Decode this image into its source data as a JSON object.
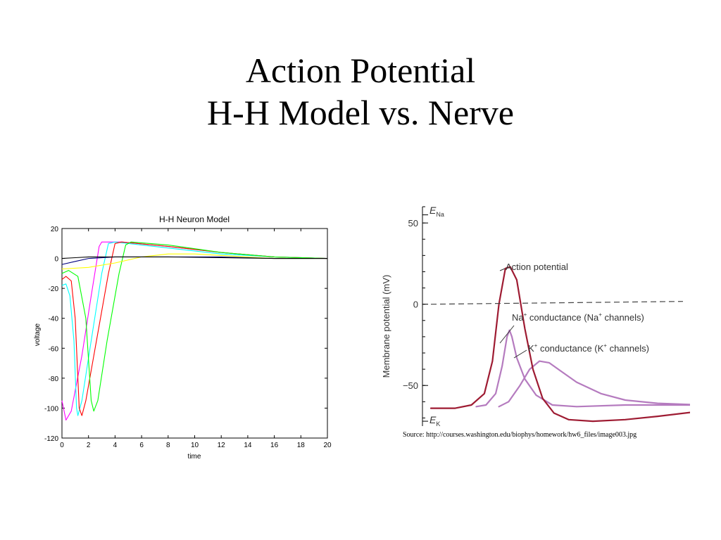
{
  "slide": {
    "title_line1": "Action Potential",
    "title_line2": "H-H Model vs. Nerve",
    "source": "Source: http://courses.washington.edu/biophys/homework/hw6_files/image003.jpg"
  },
  "chart_data": [
    {
      "type": "line",
      "title": "H-H Neuron Model",
      "xlabel": "time",
      "ylabel": "voltage",
      "xlim": [
        0,
        20
      ],
      "ylim": [
        -120,
        20
      ],
      "xticks": [
        "0",
        "2",
        "4",
        "6",
        "8",
        "10",
        "12",
        "14",
        "16",
        "18",
        "20"
      ],
      "yticks": [
        "20",
        "0",
        "-20",
        "-40",
        "-60",
        "-80",
        "-100",
        "-120"
      ],
      "grid": false,
      "series": [
        {
          "color": "#ff00ff",
          "points": [
            [
              0,
              -95
            ],
            [
              0.3,
              -108
            ],
            [
              0.7,
              -102
            ],
            [
              1.5,
              -65
            ],
            [
              2.2,
              -25
            ],
            [
              2.8,
              8
            ],
            [
              3.0,
              11
            ],
            [
              4.5,
              11
            ],
            [
              8,
              8
            ],
            [
              12,
              4
            ],
            [
              16,
              1
            ],
            [
              20,
              0
            ]
          ]
        },
        {
          "color": "#00ffff",
          "points": [
            [
              0,
              -18
            ],
            [
              0.3,
              -17
            ],
            [
              0.6,
              -25
            ],
            [
              0.9,
              -55
            ],
            [
              1.1,
              -100
            ],
            [
              1.2,
              -105
            ],
            [
              1.5,
              -95
            ],
            [
              2.2,
              -55
            ],
            [
              3,
              -10
            ],
            [
              3.5,
              10
            ],
            [
              4,
              11
            ],
            [
              8,
              7
            ],
            [
              12,
              3
            ],
            [
              16,
              1
            ],
            [
              20,
              0
            ]
          ]
        },
        {
          "color": "#ff0000",
          "points": [
            [
              0,
              -14
            ],
            [
              0.3,
              -12
            ],
            [
              0.7,
              -15
            ],
            [
              1.0,
              -40
            ],
            [
              1.3,
              -100
            ],
            [
              1.5,
              -105
            ],
            [
              1.8,
              -95
            ],
            [
              2.6,
              -55
            ],
            [
              3.5,
              -10
            ],
            [
              4,
              10
            ],
            [
              4.5,
              11
            ],
            [
              8,
              8
            ],
            [
              12,
              4
            ],
            [
              16,
              1
            ],
            [
              20,
              0
            ]
          ]
        },
        {
          "color": "#00ff00",
          "points": [
            [
              0,
              -10
            ],
            [
              0.5,
              -8
            ],
            [
              1.2,
              -12
            ],
            [
              1.8,
              -40
            ],
            [
              2.2,
              -95
            ],
            [
              2.4,
              -102
            ],
            [
              2.7,
              -95
            ],
            [
              3.4,
              -55
            ],
            [
              4.3,
              -10
            ],
            [
              4.8,
              9
            ],
            [
              5.2,
              11
            ],
            [
              8,
              9
            ],
            [
              12,
              4
            ],
            [
              16,
              1
            ],
            [
              20,
              0
            ]
          ]
        },
        {
          "color": "#ffff00",
          "points": [
            [
              0,
              -7
            ],
            [
              2,
              -6
            ],
            [
              4,
              -3
            ],
            [
              6,
              1
            ],
            [
              8,
              3
            ],
            [
              10,
              3
            ],
            [
              12,
              2
            ],
            [
              14,
              1
            ],
            [
              16,
              0
            ],
            [
              20,
              0
            ]
          ]
        },
        {
          "color": "#000080",
          "points": [
            [
              0,
              -4
            ],
            [
              1,
              -2
            ],
            [
              2,
              0
            ],
            [
              4,
              1
            ],
            [
              8,
              1
            ],
            [
              12,
              1
            ],
            [
              16,
              0
            ],
            [
              20,
              0
            ]
          ]
        },
        {
          "color": "#000000",
          "points": [
            [
              0,
              0
            ],
            [
              1,
              0.5
            ],
            [
              2,
              1
            ],
            [
              4,
              1
            ],
            [
              8,
              1
            ],
            [
              12,
              0.5
            ],
            [
              16,
              0
            ],
            [
              20,
              0
            ]
          ]
        }
      ]
    },
    {
      "type": "line",
      "xlabel": "",
      "ylabel": "Membrane potential (mV)",
      "ylim": [
        -75,
        60
      ],
      "yticks": [
        "50",
        "0",
        "−50"
      ],
      "grid": false,
      "reference_labels": {
        "top": "E",
        "top_sub": "Na",
        "bottom": "E",
        "bottom_sub": "K"
      },
      "dashed_line_at": 0,
      "annotations": {
        "action_potential": "Action potential",
        "na_prefix": "Na",
        "na_middle": " conductance (Na",
        "na_suffix": " channels)",
        "k_prefix": "K",
        "k_middle": " conductance (K",
        "k_suffix": " channels)",
        "plus": "+"
      },
      "series": [
        {
          "name": "Action potential",
          "color": "#9e1b32",
          "points": [
            [
              0,
              -64
            ],
            [
              1.5,
              -64
            ],
            [
              2.5,
              -62
            ],
            [
              3.3,
              -55
            ],
            [
              3.8,
              -35
            ],
            [
              4.2,
              0
            ],
            [
              4.6,
              22
            ],
            [
              4.9,
              23
            ],
            [
              5.3,
              15
            ],
            [
              5.8,
              -15
            ],
            [
              6.3,
              -40
            ],
            [
              6.9,
              -58
            ],
            [
              7.6,
              -67
            ],
            [
              8.5,
              -71
            ],
            [
              10,
              -72
            ],
            [
              12,
              -71
            ],
            [
              14,
              -69
            ],
            [
              16.5,
              -66
            ]
          ]
        },
        {
          "name": "Na+ conductance",
          "color": "#b57bbf",
          "points": [
            [
              2.8,
              -63
            ],
            [
              3.4,
              -62
            ],
            [
              4.0,
              -55
            ],
            [
              4.4,
              -38
            ],
            [
              4.7,
              -20
            ],
            [
              4.85,
              -16
            ],
            [
              5.0,
              -20
            ],
            [
              5.3,
              -33
            ],
            [
              5.8,
              -46
            ],
            [
              6.5,
              -56
            ],
            [
              7.5,
              -62
            ],
            [
              9,
              -63
            ],
            [
              12,
              -62
            ],
            [
              16.8,
              -62
            ]
          ]
        },
        {
          "name": "K+ conductance",
          "color": "#b57bbf",
          "points": [
            [
              4.2,
              -63
            ],
            [
              4.8,
              -60
            ],
            [
              5.5,
              -50
            ],
            [
              6.1,
              -40
            ],
            [
              6.7,
              -35
            ],
            [
              7.3,
              -36
            ],
            [
              8,
              -41
            ],
            [
              9,
              -48
            ],
            [
              10.5,
              -55
            ],
            [
              12,
              -59
            ],
            [
              14,
              -61
            ],
            [
              16.8,
              -62
            ]
          ]
        }
      ]
    }
  ]
}
